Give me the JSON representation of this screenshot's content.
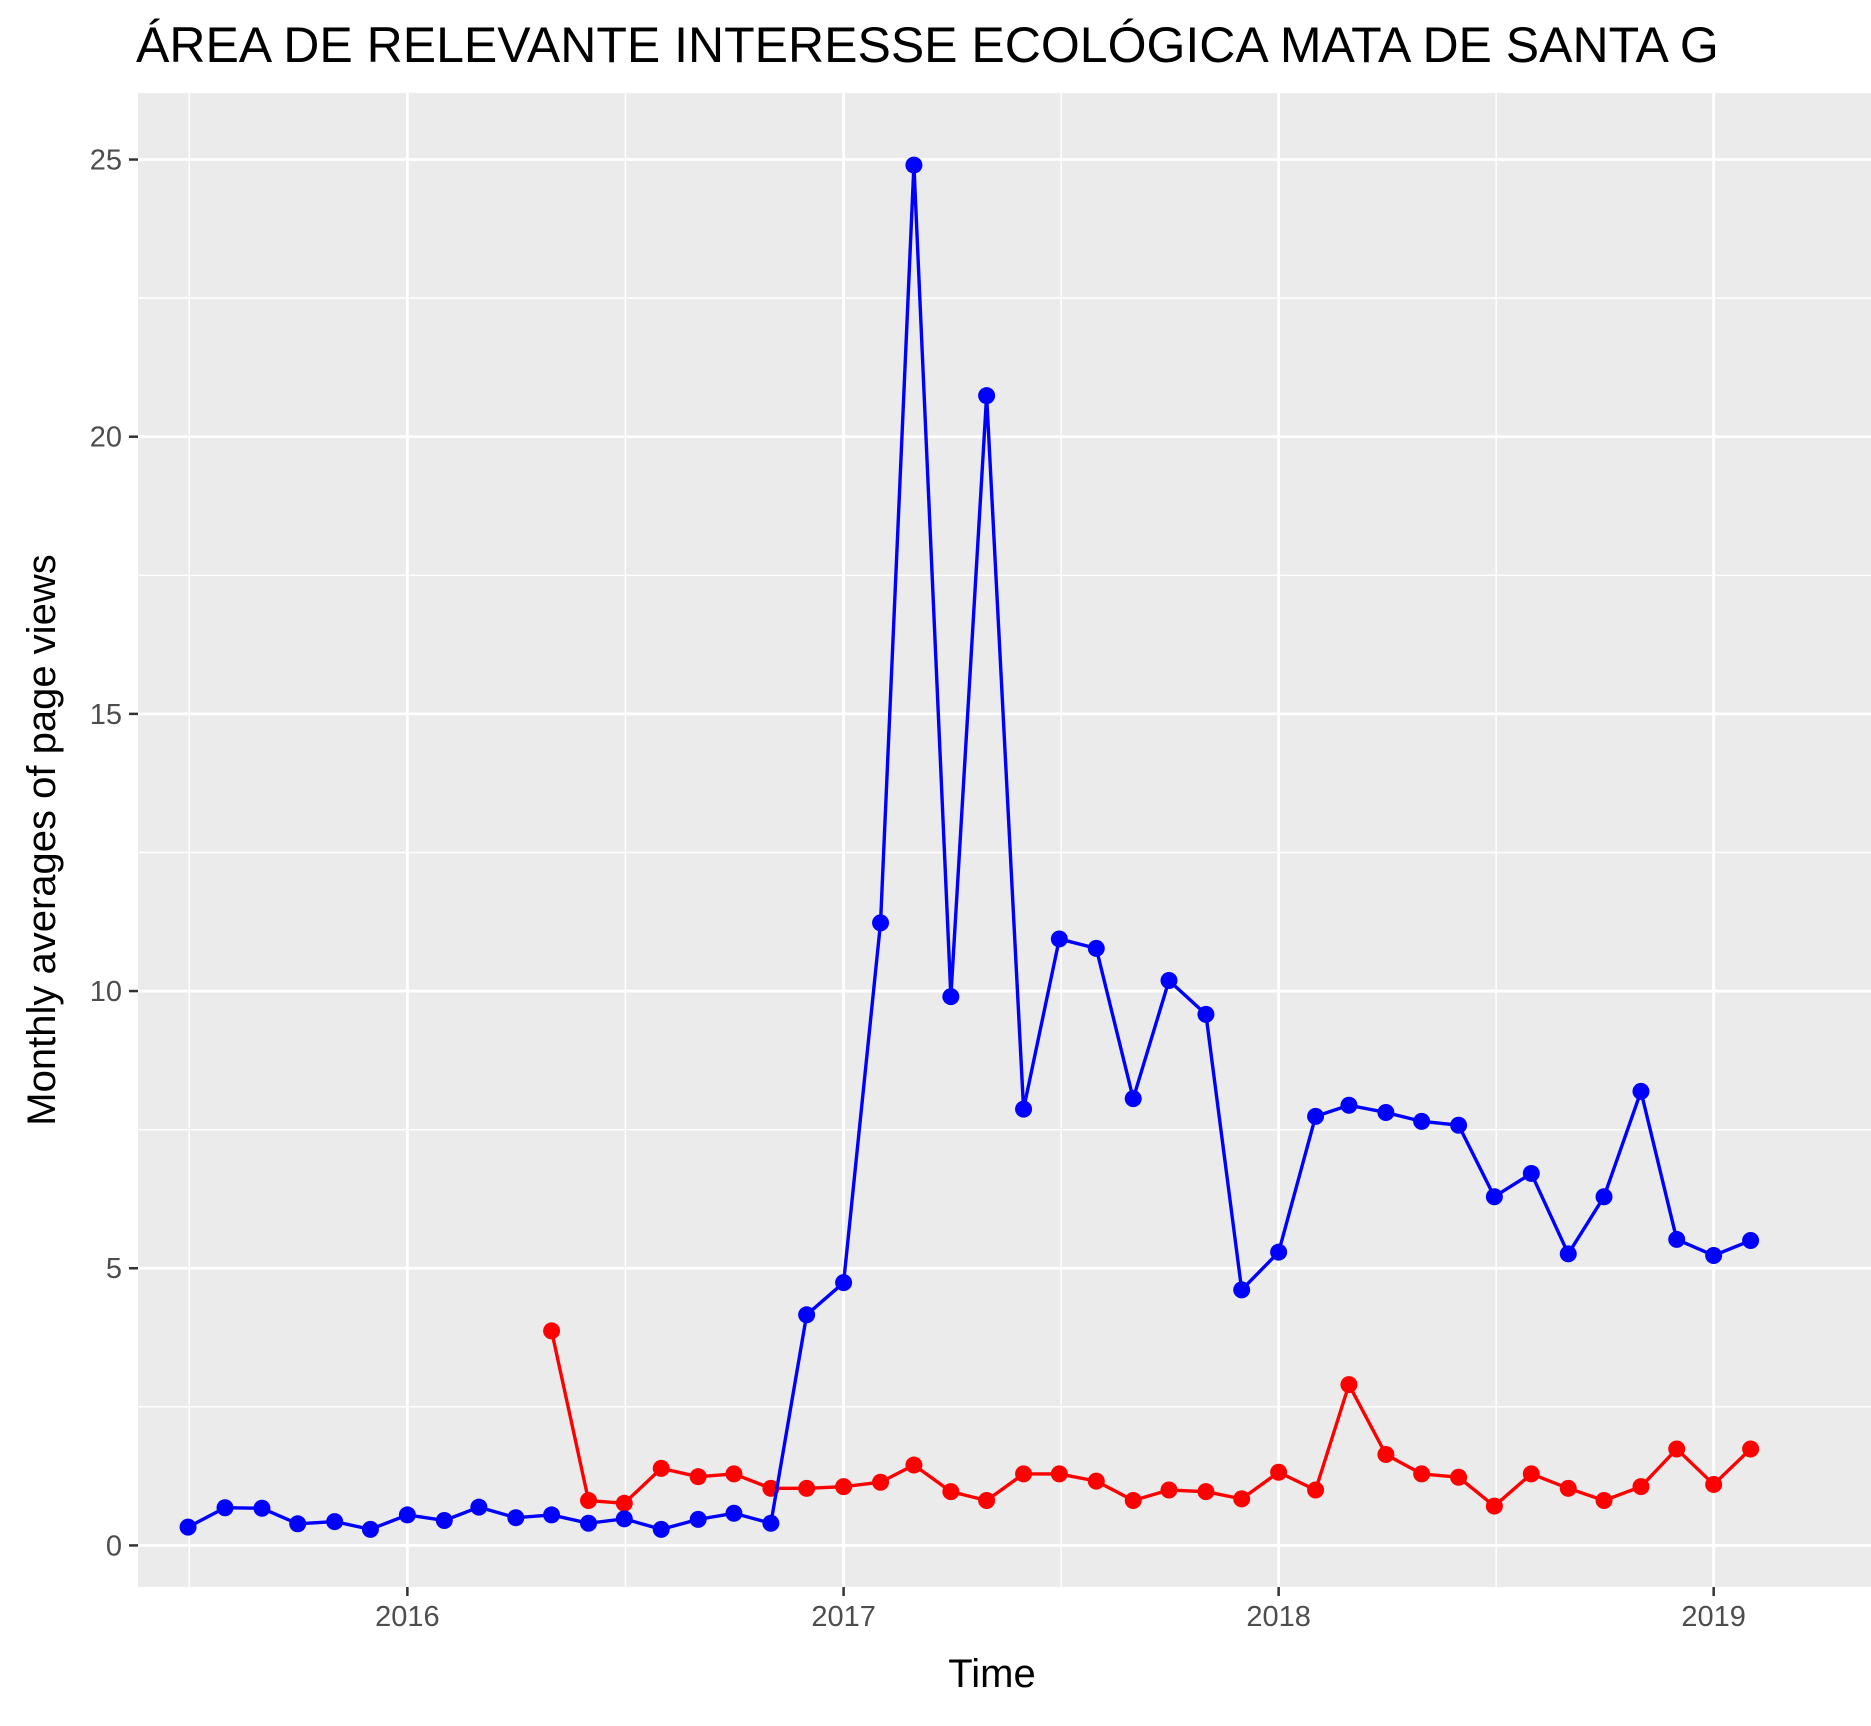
{
  "chart_data": {
    "type": "line",
    "title": "ÁREA DE RELEVANTE INTERESSE ECOLÓGICA MATA DE SANTA G",
    "xlabel": "Time",
    "ylabel": "Monthly averages of page views",
    "ylim": [
      -0.75,
      26.2
    ],
    "yticks": [
      0,
      5,
      10,
      15,
      20,
      25
    ],
    "ytick_labels": [
      "0",
      "5",
      "10",
      "15",
      "20",
      "25"
    ],
    "xlim": [
      "2015-05-20",
      "2019-05-13"
    ],
    "xticks": [
      "2016-01-01",
      "2017-01-01",
      "2018-01-01",
      "2019-01-01"
    ],
    "xtick_labels": [
      "2016",
      "2017",
      "2018",
      "2019"
    ],
    "grid": true,
    "legend": "none",
    "colors": {
      "panel": "#ebebeb",
      "grid": "#ffffff",
      "series_blue": "#0000ff",
      "series_red": "#ff0000"
    },
    "series": [
      {
        "color": "#0000ff",
        "points": [
          [
            "2015-07-01",
            0.33
          ],
          [
            "2015-08-01",
            0.68
          ],
          [
            "2015-09-01",
            0.67
          ],
          [
            "2015-10-01",
            0.39
          ],
          [
            "2015-11-01",
            0.43
          ],
          [
            "2015-12-01",
            0.29
          ],
          [
            "2016-01-01",
            0.55
          ],
          [
            "2016-02-01",
            0.45
          ],
          [
            "2016-03-01",
            0.69
          ],
          [
            "2016-04-01",
            0.5
          ],
          [
            "2016-05-01",
            0.55
          ],
          [
            "2016-06-01",
            0.4
          ],
          [
            "2016-07-01",
            0.48
          ],
          [
            "2016-08-01",
            0.29
          ],
          [
            "2016-09-01",
            0.47
          ],
          [
            "2016-10-01",
            0.58
          ],
          [
            "2016-11-01",
            0.4
          ],
          [
            "2016-12-01",
            4.16
          ],
          [
            "2017-01-01",
            4.74
          ],
          [
            "2017-02-01",
            11.23
          ],
          [
            "2017-03-01",
            24.9
          ],
          [
            "2017-04-01",
            9.9
          ],
          [
            "2017-05-01",
            20.74
          ],
          [
            "2017-06-01",
            7.87
          ],
          [
            "2017-07-01",
            10.94
          ],
          [
            "2017-08-01",
            10.77
          ],
          [
            "2017-09-01",
            8.06
          ],
          [
            "2017-10-01",
            10.19
          ],
          [
            "2017-11-01",
            9.58
          ],
          [
            "2017-12-01",
            4.61
          ],
          [
            "2018-01-01",
            5.29
          ],
          [
            "2018-02-01",
            7.74
          ],
          [
            "2018-03-01",
            7.94
          ],
          [
            "2018-04-01",
            7.81
          ],
          [
            "2018-05-01",
            7.65
          ],
          [
            "2018-06-01",
            7.58
          ],
          [
            "2018-07-01",
            6.29
          ],
          [
            "2018-08-01",
            6.71
          ],
          [
            "2018-09-01",
            5.26
          ],
          [
            "2018-10-01",
            6.29
          ],
          [
            "2018-11-01",
            8.19
          ],
          [
            "2018-12-01",
            5.52
          ],
          [
            "2019-01-01",
            5.23
          ],
          [
            "2019-02-01",
            5.5
          ]
        ]
      },
      {
        "color": "#ff0000",
        "points": [
          [
            "2016-05-01",
            3.87
          ],
          [
            "2016-06-01",
            0.81
          ],
          [
            "2016-07-01",
            0.76
          ],
          [
            "2016-08-01",
            1.39
          ],
          [
            "2016-09-01",
            1.24
          ],
          [
            "2016-10-01",
            1.29
          ],
          [
            "2016-11-01",
            1.03
          ],
          [
            "2016-12-01",
            1.03
          ],
          [
            "2017-01-01",
            1.06
          ],
          [
            "2017-02-01",
            1.14
          ],
          [
            "2017-03-01",
            1.45
          ],
          [
            "2017-04-01",
            0.97
          ],
          [
            "2017-05-01",
            0.81
          ],
          [
            "2017-06-01",
            1.29
          ],
          [
            "2017-07-01",
            1.29
          ],
          [
            "2017-08-01",
            1.16
          ],
          [
            "2017-09-01",
            0.81
          ],
          [
            "2017-10-01",
            1.0
          ],
          [
            "2017-11-01",
            0.97
          ],
          [
            "2017-12-01",
            0.84
          ],
          [
            "2018-01-01",
            1.32
          ],
          [
            "2018-02-01",
            1.0
          ],
          [
            "2018-03-01",
            2.9
          ],
          [
            "2018-04-01",
            1.64
          ],
          [
            "2018-05-01",
            1.29
          ],
          [
            "2018-06-01",
            1.23
          ],
          [
            "2018-07-01",
            0.71
          ],
          [
            "2018-08-01",
            1.29
          ],
          [
            "2018-09-01",
            1.03
          ],
          [
            "2018-10-01",
            0.81
          ],
          [
            "2018-11-01",
            1.06
          ],
          [
            "2018-12-01",
            1.74
          ],
          [
            "2019-01-01",
            1.1
          ],
          [
            "2019-02-01",
            1.74
          ]
        ]
      }
    ]
  }
}
